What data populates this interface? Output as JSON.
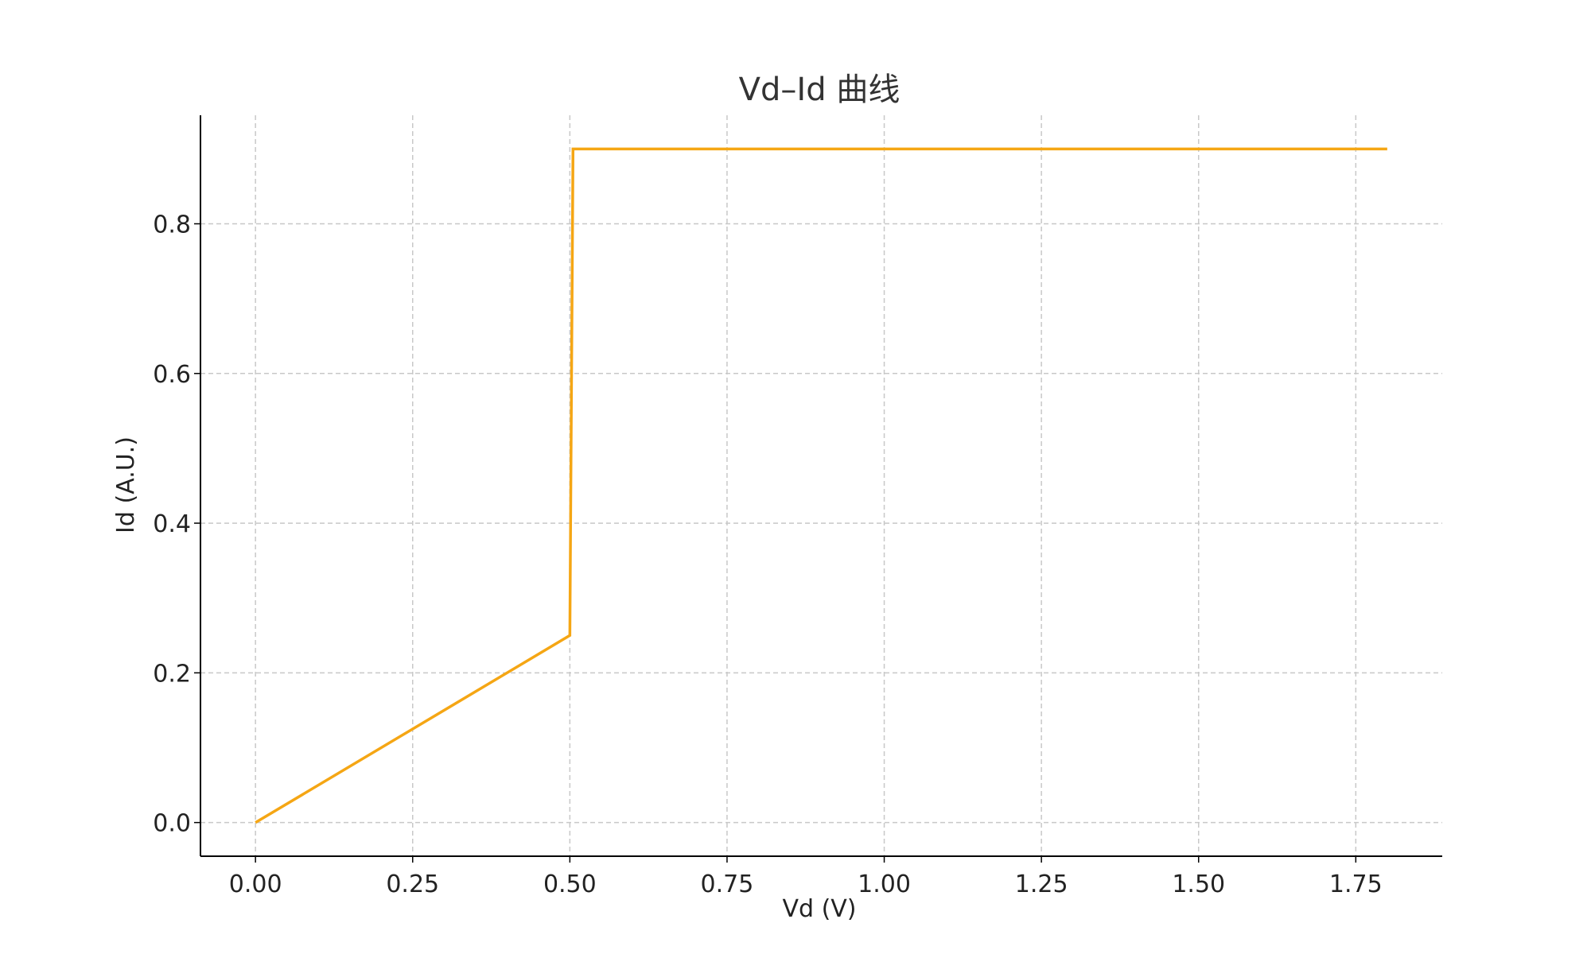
{
  "chart_data": {
    "type": "line",
    "title": "Vd–Id 曲线",
    "xlabel": "Vd (V)",
    "ylabel": "Id (A.U.)",
    "xlim": [
      -0.0875,
      1.8875
    ],
    "ylim": [
      -0.045,
      0.945
    ],
    "x_ticks": [
      0.0,
      0.25,
      0.5,
      0.75,
      1.0,
      1.25,
      1.5,
      1.75
    ],
    "x_tick_labels": [
      "0.00",
      "0.25",
      "0.50",
      "0.75",
      "1.00",
      "1.25",
      "1.50",
      "1.75"
    ],
    "y_ticks": [
      0.0,
      0.2,
      0.4,
      0.6,
      0.8
    ],
    "y_tick_labels": [
      "0.0",
      "0.2",
      "0.4",
      "0.6",
      "0.8"
    ],
    "grid": true,
    "legend": "none",
    "series": [
      {
        "color": "#f5a614",
        "x": [
          0.0,
          0.5,
          0.505,
          1.8
        ],
        "y": [
          0.0,
          0.25,
          0.9,
          0.9
        ]
      }
    ]
  }
}
